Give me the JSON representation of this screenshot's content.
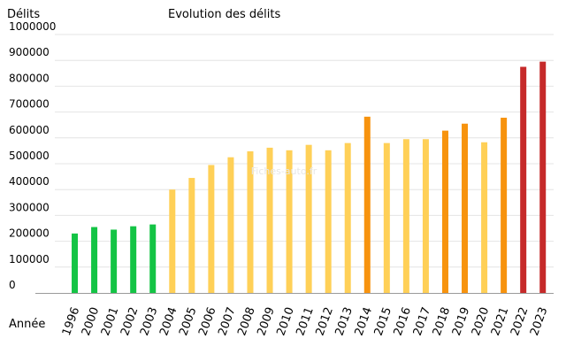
{
  "chart_data": {
    "type": "bar",
    "title": "Evolution des délits",
    "ylabel": "Délits",
    "xlabel": "Année",
    "watermark": "Fiches-auto.fr",
    "ylim": [
      0,
      1000000
    ],
    "yticks": [
      "0",
      "100000",
      "200000",
      "300000",
      "400000",
      "500000",
      "600000",
      "700000",
      "800000",
      "900000",
      "1000000"
    ],
    "grid": true,
    "categories": [
      "1996",
      "2000",
      "2001",
      "2002",
      "2003",
      "2004",
      "2005",
      "2006",
      "2007",
      "2008",
      "2009",
      "2010",
      "2011",
      "2012",
      "2013",
      "2014",
      "2015",
      "2016",
      "2017",
      "2018",
      "2019",
      "2020",
      "2021",
      "2022",
      "2023"
    ],
    "values": [
      230000,
      255000,
      245000,
      258000,
      265000,
      400000,
      445000,
      495000,
      525000,
      548000,
      562000,
      552000,
      573000,
      552000,
      580000,
      682000,
      580000,
      595000,
      595000,
      628000,
      655000,
      583000,
      678000,
      875000,
      895000
    ],
    "colors": [
      "#14c445",
      "#14c445",
      "#14c445",
      "#14c445",
      "#14c445",
      "#ffd057",
      "#ffd057",
      "#ffd057",
      "#ffd057",
      "#ffd057",
      "#ffd057",
      "#ffd057",
      "#ffd057",
      "#ffd057",
      "#ffd057",
      "#f7930e",
      "#ffd057",
      "#ffd057",
      "#ffd057",
      "#f7930e",
      "#f7930e",
      "#ffd057",
      "#f7930e",
      "#c62a2a",
      "#c62a2a"
    ]
  }
}
